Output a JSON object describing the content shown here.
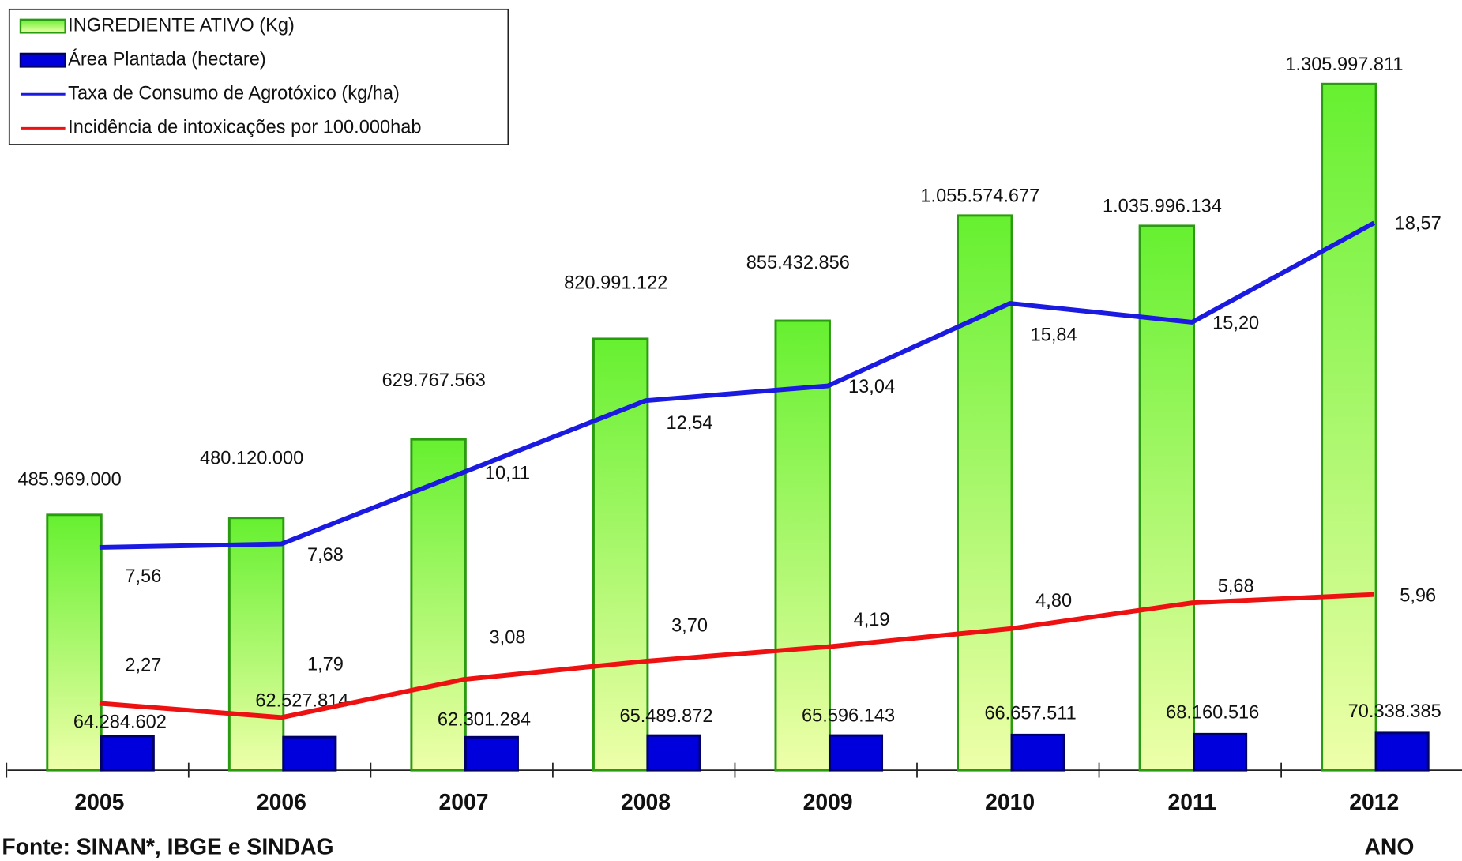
{
  "chart_data": {
    "type": "bar",
    "categories": [
      "2005",
      "2006",
      "2007",
      "2008",
      "2009",
      "2010",
      "2011",
      "2012"
    ],
    "x_label": "ANO",
    "source": "Fonte: SINAN*, IBGE e SINDAG",
    "series": [
      {
        "name": "INGREDIENTE  ATIVO (Kg)",
        "type": "bar",
        "color": "#55ee22",
        "values": [
          485969000,
          480120000,
          629767563,
          820991122,
          855432856,
          1055574677,
          1035996134,
          1305997811
        ],
        "value_labels": [
          "485.969.000",
          "480.120.000",
          "629.767.563",
          "820.991.122",
          "855.432.856",
          "1.055.574.677",
          "1.035.996.134",
          "1.305.997.811"
        ]
      },
      {
        "name": "Área Plantada (hectare)",
        "type": "bar",
        "color": "#0000dd",
        "values": [
          64284602,
          62527814,
          62301284,
          65489872,
          65596143,
          66657511,
          68160516,
          70338385
        ],
        "value_labels": [
          "64.284.602",
          "62.527.814",
          "62.301.284",
          "65.489.872",
          "65.596.143",
          "66.657.511",
          "68.160.516",
          "70.338.385"
        ]
      },
      {
        "name": "Taxa de Consumo de Agrotóxico (kg/ha)",
        "type": "line",
        "color": "#1a1ae0",
        "values": [
          7.56,
          7.68,
          10.11,
          12.54,
          13.04,
          15.84,
          15.2,
          18.57
        ],
        "value_labels": [
          "7,56",
          "7,68",
          "10,11",
          "12,54",
          "13,04",
          "15,84",
          "15,20",
          "18,57"
        ]
      },
      {
        "name": "Incidência de intoxicações por 100.000hab",
        "type": "line",
        "color": "#ee1111",
        "values": [
          2.27,
          1.79,
          3.08,
          3.7,
          4.19,
          4.8,
          5.68,
          5.96
        ],
        "value_labels": [
          "2,27",
          "1,79",
          "3,08",
          "3,70",
          "4,19",
          "4,80",
          "5,68",
          "5,96"
        ]
      }
    ]
  }
}
